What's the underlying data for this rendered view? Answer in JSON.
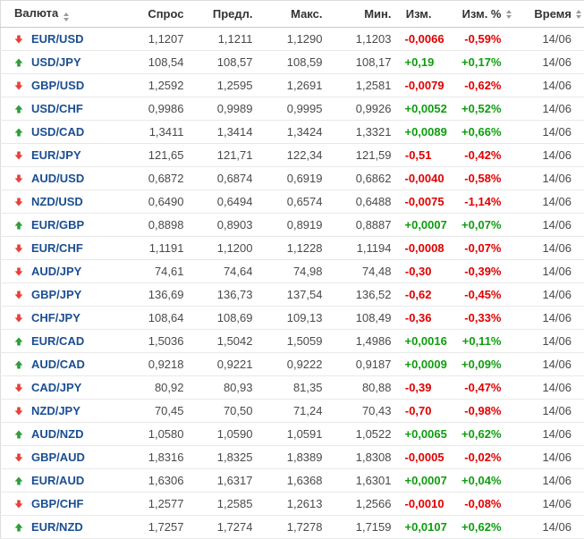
{
  "colors": {
    "up": "#0f9d0f",
    "down": "#e00000",
    "pair": "#1b4e91",
    "arrow_up": "#2e9e38",
    "arrow_down": "#e8403a"
  },
  "table": {
    "columns": [
      {
        "label": "Валюта",
        "sortable": true
      },
      {
        "label": "Спрос",
        "sortable": false
      },
      {
        "label": "Предл.",
        "sortable": false
      },
      {
        "label": "Макс.",
        "sortable": false
      },
      {
        "label": "Мин.",
        "sortable": false
      },
      {
        "label": "Изм.",
        "sortable": false
      },
      {
        "label": "Изм. %",
        "sortable": true
      },
      {
        "label": "Время",
        "sortable": true
      }
    ],
    "rows": [
      {
        "direction": "down",
        "pair": "EUR/USD",
        "bid": "1,1207",
        "ask": "1,1211",
        "high": "1,1290",
        "low": "1,1203",
        "change": "-0,0066",
        "change_pct": "-0,59%",
        "time": "14/06"
      },
      {
        "direction": "up",
        "pair": "USD/JPY",
        "bid": "108,54",
        "ask": "108,57",
        "high": "108,59",
        "low": "108,17",
        "change": "+0,19",
        "change_pct": "+0,17%",
        "time": "14/06"
      },
      {
        "direction": "down",
        "pair": "GBP/USD",
        "bid": "1,2592",
        "ask": "1,2595",
        "high": "1,2691",
        "low": "1,2581",
        "change": "-0,0079",
        "change_pct": "-0,62%",
        "time": "14/06"
      },
      {
        "direction": "up",
        "pair": "USD/CHF",
        "bid": "0,9986",
        "ask": "0,9989",
        "high": "0,9995",
        "low": "0,9926",
        "change": "+0,0052",
        "change_pct": "+0,52%",
        "time": "14/06"
      },
      {
        "direction": "up",
        "pair": "USD/CAD",
        "bid": "1,3411",
        "ask": "1,3414",
        "high": "1,3424",
        "low": "1,3321",
        "change": "+0,0089",
        "change_pct": "+0,66%",
        "time": "14/06"
      },
      {
        "direction": "down",
        "pair": "EUR/JPY",
        "bid": "121,65",
        "ask": "121,71",
        "high": "122,34",
        "low": "121,59",
        "change": "-0,51",
        "change_pct": "-0,42%",
        "time": "14/06"
      },
      {
        "direction": "down",
        "pair": "AUD/USD",
        "bid": "0,6872",
        "ask": "0,6874",
        "high": "0,6919",
        "low": "0,6862",
        "change": "-0,0040",
        "change_pct": "-0,58%",
        "time": "14/06"
      },
      {
        "direction": "down",
        "pair": "NZD/USD",
        "bid": "0,6490",
        "ask": "0,6494",
        "high": "0,6574",
        "low": "0,6488",
        "change": "-0,0075",
        "change_pct": "-1,14%",
        "time": "14/06"
      },
      {
        "direction": "up",
        "pair": "EUR/GBP",
        "bid": "0,8898",
        "ask": "0,8903",
        "high": "0,8919",
        "low": "0,8887",
        "change": "+0,0007",
        "change_pct": "+0,07%",
        "time": "14/06"
      },
      {
        "direction": "down",
        "pair": "EUR/CHF",
        "bid": "1,1191",
        "ask": "1,1200",
        "high": "1,1228",
        "low": "1,1194",
        "change": "-0,0008",
        "change_pct": "-0,07%",
        "time": "14/06"
      },
      {
        "direction": "down",
        "pair": "AUD/JPY",
        "bid": "74,61",
        "ask": "74,64",
        "high": "74,98",
        "low": "74,48",
        "change": "-0,30",
        "change_pct": "-0,39%",
        "time": "14/06"
      },
      {
        "direction": "down",
        "pair": "GBP/JPY",
        "bid": "136,69",
        "ask": "136,73",
        "high": "137,54",
        "low": "136,52",
        "change": "-0,62",
        "change_pct": "-0,45%",
        "time": "14/06"
      },
      {
        "direction": "down",
        "pair": "CHF/JPY",
        "bid": "108,64",
        "ask": "108,69",
        "high": "109,13",
        "low": "108,49",
        "change": "-0,36",
        "change_pct": "-0,33%",
        "time": "14/06"
      },
      {
        "direction": "up",
        "pair": "EUR/CAD",
        "bid": "1,5036",
        "ask": "1,5042",
        "high": "1,5059",
        "low": "1,4986",
        "change": "+0,0016",
        "change_pct": "+0,11%",
        "time": "14/06"
      },
      {
        "direction": "up",
        "pair": "AUD/CAD",
        "bid": "0,9218",
        "ask": "0,9221",
        "high": "0,9222",
        "low": "0,9187",
        "change": "+0,0009",
        "change_pct": "+0,09%",
        "time": "14/06"
      },
      {
        "direction": "down",
        "pair": "CAD/JPY",
        "bid": "80,92",
        "ask": "80,93",
        "high": "81,35",
        "low": "80,88",
        "change": "-0,39",
        "change_pct": "-0,47%",
        "time": "14/06"
      },
      {
        "direction": "down",
        "pair": "NZD/JPY",
        "bid": "70,45",
        "ask": "70,50",
        "high": "71,24",
        "low": "70,43",
        "change": "-0,70",
        "change_pct": "-0,98%",
        "time": "14/06"
      },
      {
        "direction": "up",
        "pair": "AUD/NZD",
        "bid": "1,0580",
        "ask": "1,0590",
        "high": "1,0591",
        "low": "1,0522",
        "change": "+0,0065",
        "change_pct": "+0,62%",
        "time": "14/06"
      },
      {
        "direction": "down",
        "pair": "GBP/AUD",
        "bid": "1,8316",
        "ask": "1,8325",
        "high": "1,8389",
        "low": "1,8308",
        "change": "-0,0005",
        "change_pct": "-0,02%",
        "time": "14/06"
      },
      {
        "direction": "up",
        "pair": "EUR/AUD",
        "bid": "1,6306",
        "ask": "1,6317",
        "high": "1,6368",
        "low": "1,6301",
        "change": "+0,0007",
        "change_pct": "+0,04%",
        "time": "14/06"
      },
      {
        "direction": "down",
        "pair": "GBP/CHF",
        "bid": "1,2577",
        "ask": "1,2585",
        "high": "1,2613",
        "low": "1,2566",
        "change": "-0,0010",
        "change_pct": "-0,08%",
        "time": "14/06"
      },
      {
        "direction": "up",
        "pair": "EUR/NZD",
        "bid": "1,7257",
        "ask": "1,7274",
        "high": "1,7278",
        "low": "1,7159",
        "change": "+0,0107",
        "change_pct": "+0,62%",
        "time": "14/06"
      }
    ]
  }
}
